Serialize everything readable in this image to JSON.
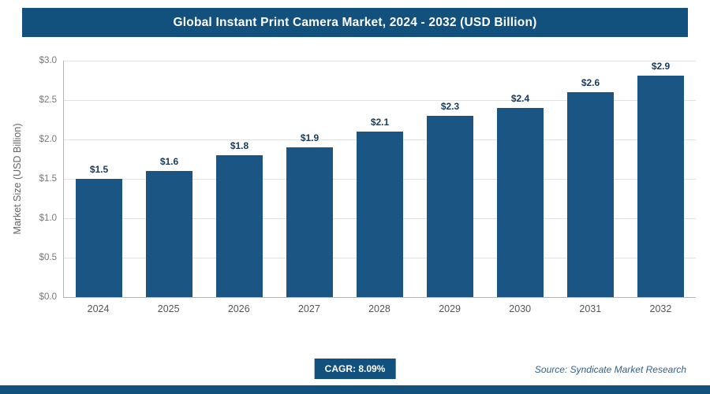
{
  "header": {
    "title": "Global Instant Print Camera Market, 2024 - 2032 (USD Billion)"
  },
  "chart_data": {
    "type": "bar",
    "title": "Global Instant Print Camera Market, 2024 - 2032 (USD Billion)",
    "categories": [
      "2024",
      "2025",
      "2026",
      "2027",
      "2028",
      "2029",
      "2030",
      "2031",
      "2032"
    ],
    "values": [
      1.5,
      1.6,
      1.8,
      1.9,
      2.1,
      2.3,
      2.4,
      2.6,
      2.9
    ],
    "value_labels": [
      "$1.5",
      "$1.6",
      "$1.8",
      "$1.9",
      "$2.1",
      "$2.3",
      "$2.4",
      "$2.6",
      "$2.9"
    ],
    "xlabel": "",
    "ylabel": "Market Size (USD Billion)",
    "ylim": [
      0,
      3.0
    ],
    "ytick_step": 0.5,
    "yticks": [
      "$0.0",
      "$0.5",
      "$1.0",
      "$1.5",
      "$2.0",
      "$2.5",
      "$3.0"
    ],
    "grid": true,
    "legend": "none",
    "bar_color": "#1b5583"
  },
  "footer": {
    "cagr_label": "CAGR: 8.09%",
    "source": "Source: Syndicate Market Research"
  },
  "colors": {
    "accent": "#12507d",
    "bar": "#1b5583",
    "grid": "#e2e2e2"
  }
}
